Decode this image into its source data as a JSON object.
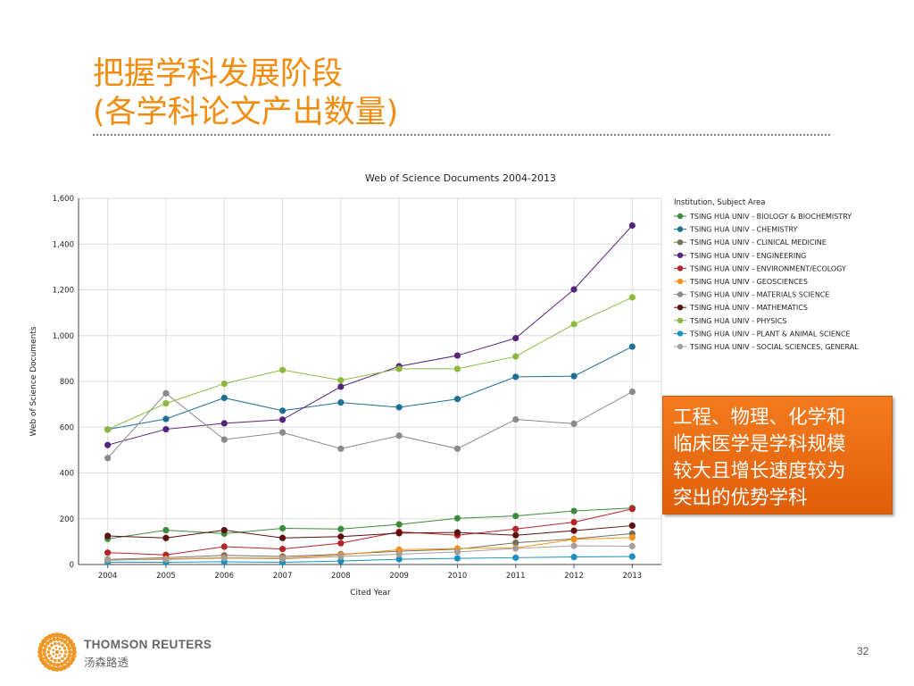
{
  "slide": {
    "title_line1": "把握学科发展阶段",
    "title_line2": "(各学科论文产出数量)",
    "callout_lines": [
      "工程、物理、化学和",
      "临床医学是学科规模",
      "较大且增长速度较为",
      "突出的优势学科"
    ],
    "page_number": "32",
    "logo_text": "THOMSON REUTERS",
    "logo_text_cn": "汤森路透"
  },
  "colors": {
    "title": "#f08c0f",
    "callout_bg": "#f0700f",
    "logo": "#f08c0f"
  },
  "chart_data": {
    "type": "line",
    "title": "Web of Science Documents 2004-2013",
    "xlabel": "Cited Year",
    "ylabel": "Web of Science Documents",
    "x": [
      "2004",
      "2005",
      "2006",
      "2007",
      "2008",
      "2009",
      "2010",
      "2011",
      "2012",
      "2013"
    ],
    "ylim": [
      0,
      1600
    ],
    "yticks": [
      0,
      200,
      400,
      600,
      800,
      1000,
      1200,
      1400,
      1600
    ],
    "ytick_labels": [
      "0",
      "200",
      "400",
      "600",
      "800",
      "1,000",
      "1,200",
      "1,400",
      "1,600"
    ],
    "grid": true,
    "legend_title": "Institution, Subject Area",
    "legend_position": "right",
    "series": [
      {
        "name": "TSING HUA UNIV - BIOLOGY & BIOCHEMISTRY",
        "color": "#3d8a3d",
        "values": [
          112,
          150,
          135,
          158,
          155,
          175,
          202,
          212,
          234,
          247
        ]
      },
      {
        "name": "TSING HUA UNIV - CHEMISTRY",
        "color": "#1e6f94",
        "values": [
          590,
          636,
          728,
          672,
          708,
          687,
          723,
          820,
          823,
          952
        ]
      },
      {
        "name": "TSING HUA UNIV - CLINICAL MEDICINE",
        "color": "#7a6e5e",
        "values": [
          22,
          30,
          40,
          35,
          45,
          58,
          67,
          95,
          112,
          135
        ]
      },
      {
        "name": "TSING HUA UNIV - ENGINEERING",
        "color": "#55257a",
        "values": [
          522,
          591,
          617,
          633,
          777,
          866,
          913,
          989,
          1202,
          1481
        ]
      },
      {
        "name": "TSING HUA UNIV - ENVIRONMENT/ECOLOGY",
        "color": "#b5262a",
        "values": [
          52,
          42,
          78,
          68,
          93,
          143,
          128,
          155,
          185,
          243
        ]
      },
      {
        "name": "TSING HUA UNIV - GEOSCIENCES",
        "color": "#f3921a",
        "values": [
          18,
          25,
          30,
          28,
          42,
          65,
          70,
          72,
          110,
          118
        ]
      },
      {
        "name": "TSING HUA UNIV - MATERIALS SCIENCE",
        "color": "#8a8a8a",
        "values": [
          465,
          748,
          546,
          577,
          506,
          563,
          506,
          634,
          615,
          755
        ]
      },
      {
        "name": "TSING HUA UNIV - MATHEMATICS",
        "color": "#5c1010",
        "values": [
          125,
          116,
          150,
          116,
          122,
          137,
          140,
          128,
          148,
          170
        ]
      },
      {
        "name": "TSING HUA UNIV - PHYSICS",
        "color": "#8db83f",
        "values": [
          590,
          704,
          790,
          850,
          805,
          855,
          855,
          909,
          1050,
          1167
        ]
      },
      {
        "name": "TSING HUA UNIV - PLANT & ANIMAL SCIENCE",
        "color": "#1a8fc0",
        "values": [
          10,
          10,
          12,
          10,
          15,
          23,
          27,
          30,
          33,
          35
        ]
      },
      {
        "name": "TSING HUA UNIV - SOCIAL SCIENCES, GENERAL",
        "color": "#a89e98",
        "values": [
          20,
          22,
          28,
          25,
          35,
          45,
          55,
          70,
          82,
          80
        ]
      }
    ]
  }
}
